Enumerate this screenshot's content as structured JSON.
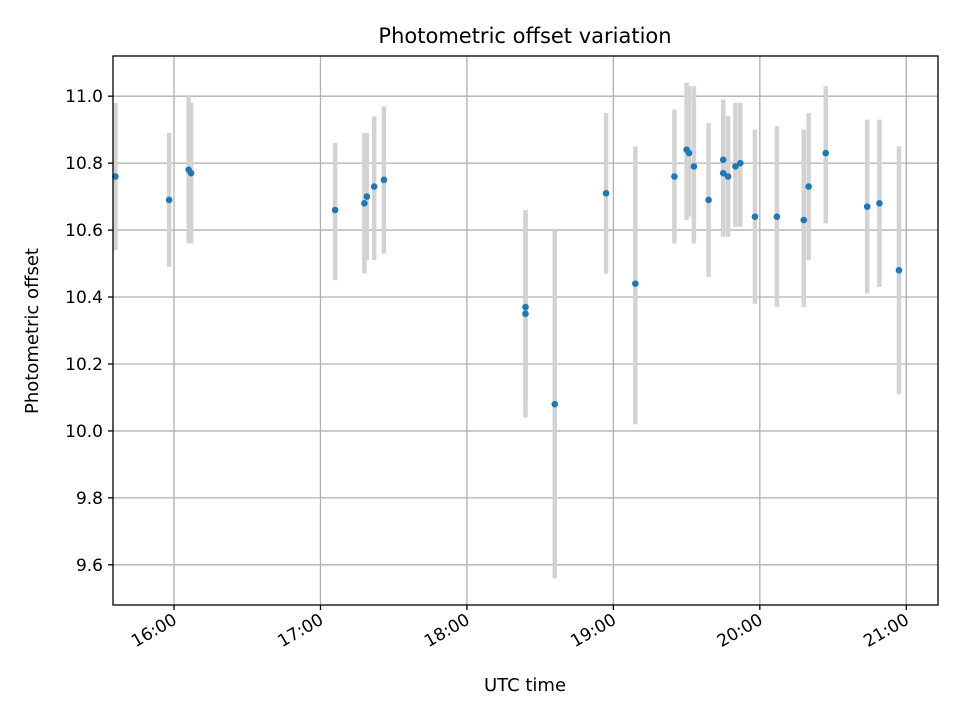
{
  "chart_data": {
    "type": "scatter",
    "title": "Photometric offset variation",
    "xlabel": "UTC time",
    "ylabel": "Photometric offset",
    "x_ticks": [
      "16:00",
      "17:00",
      "18:00",
      "19:00",
      "20:00",
      "21:00"
    ],
    "y_ticks": [
      "9.6",
      "9.8",
      "10.0",
      "10.2",
      "10.4",
      "10.6",
      "10.8",
      "11.0"
    ],
    "xlim": [
      "15:35",
      "21:13"
    ],
    "ylim": [
      9.48,
      11.12
    ],
    "grid": true,
    "colors": {
      "points": "#1f77b4",
      "errorbars": "#d3d3d3"
    },
    "series": [
      {
        "points": [
          {
            "x": "15:36",
            "y": 10.76,
            "low": 10.54,
            "high": 10.98
          },
          {
            "x": "15:58",
            "y": 10.69,
            "low": 10.49,
            "high": 10.89
          },
          {
            "x": "16:06",
            "y": 10.78,
            "low": 10.56,
            "high": 11.0
          },
          {
            "x": "16:07",
            "y": 10.77,
            "low": 10.56,
            "high": 10.98
          },
          {
            "x": "17:06",
            "y": 10.66,
            "low": 10.45,
            "high": 10.86
          },
          {
            "x": "17:18",
            "y": 10.68,
            "low": 10.47,
            "high": 10.89
          },
          {
            "x": "17:19",
            "y": 10.7,
            "low": 10.51,
            "high": 10.89
          },
          {
            "x": "17:22",
            "y": 10.73,
            "low": 10.51,
            "high": 10.94
          },
          {
            "x": "17:26",
            "y": 10.75,
            "low": 10.53,
            "high": 10.97
          },
          {
            "x": "18:24",
            "y": 10.37,
            "low": 10.08,
            "high": 10.66
          },
          {
            "x": "18:24",
            "y": 10.35,
            "low": 10.04,
            "high": 10.65
          },
          {
            "x": "18:36",
            "y": 10.08,
            "low": 9.56,
            "high": 10.6
          },
          {
            "x": "18:57",
            "y": 10.71,
            "low": 10.47,
            "high": 10.95
          },
          {
            "x": "19:09",
            "y": 10.44,
            "low": 10.02,
            "high": 10.85
          },
          {
            "x": "19:25",
            "y": 10.76,
            "low": 10.56,
            "high": 10.96
          },
          {
            "x": "19:30",
            "y": 10.84,
            "low": 10.63,
            "high": 11.04
          },
          {
            "x": "19:31",
            "y": 10.83,
            "low": 10.64,
            "high": 11.03
          },
          {
            "x": "19:33",
            "y": 10.79,
            "low": 10.56,
            "high": 11.03
          },
          {
            "x": "19:39",
            "y": 10.69,
            "low": 10.46,
            "high": 10.92
          },
          {
            "x": "19:45",
            "y": 10.81,
            "low": 10.61,
            "high": 10.99
          },
          {
            "x": "19:45",
            "y": 10.77,
            "low": 10.58,
            "high": 10.96
          },
          {
            "x": "19:47",
            "y": 10.76,
            "low": 10.58,
            "high": 10.94
          },
          {
            "x": "19:50",
            "y": 10.79,
            "low": 10.61,
            "high": 10.98
          },
          {
            "x": "19:52",
            "y": 10.8,
            "low": 10.61,
            "high": 10.98
          },
          {
            "x": "19:58",
            "y": 10.64,
            "low": 10.38,
            "high": 10.9
          },
          {
            "x": "20:07",
            "y": 10.64,
            "low": 10.37,
            "high": 10.91
          },
          {
            "x": "20:18",
            "y": 10.63,
            "low": 10.37,
            "high": 10.9
          },
          {
            "x": "20:20",
            "y": 10.73,
            "low": 10.51,
            "high": 10.95
          },
          {
            "x": "20:27",
            "y": 10.83,
            "low": 10.62,
            "high": 11.03
          },
          {
            "x": "20:44",
            "y": 10.67,
            "low": 10.41,
            "high": 10.93
          },
          {
            "x": "20:49",
            "y": 10.68,
            "low": 10.43,
            "high": 10.93
          },
          {
            "x": "20:57",
            "y": 10.48,
            "low": 10.11,
            "high": 10.85
          }
        ]
      }
    ]
  }
}
